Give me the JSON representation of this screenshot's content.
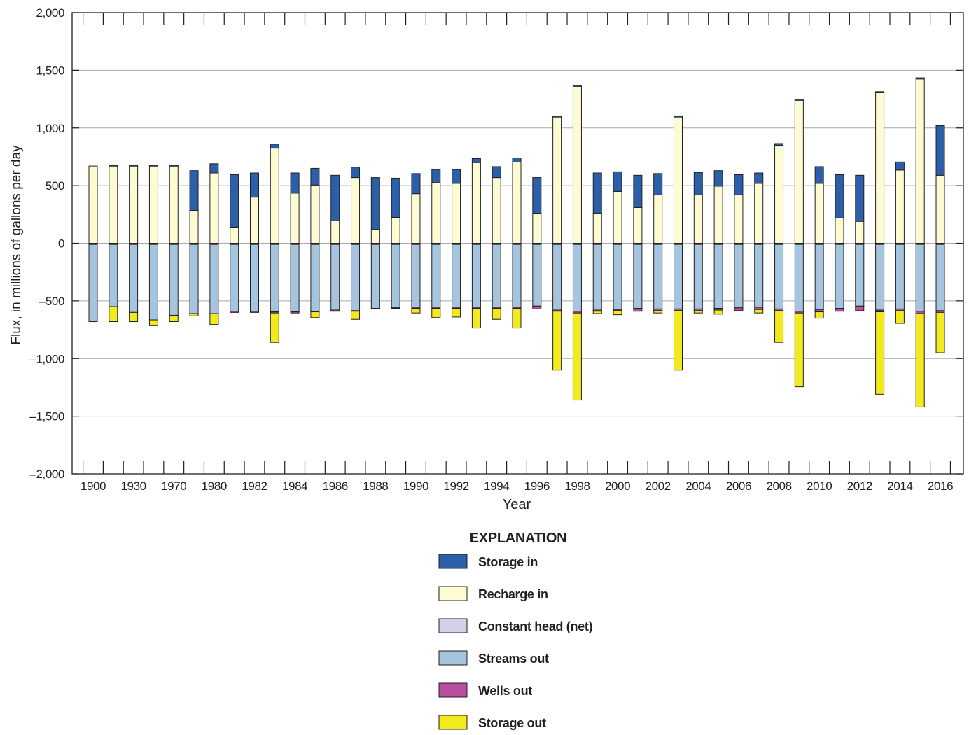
{
  "chart_data": {
    "type": "bar",
    "stacked": true,
    "xlabel": "Year",
    "ylabel": "Flux, in millions of gallons per day",
    "ylim": [
      -2000,
      2000
    ],
    "y_ticks": [
      2000,
      1500,
      1000,
      500,
      0,
      -500,
      -1000,
      -1500,
      -2000
    ],
    "y_tick_labels": [
      "2,000",
      "1,500",
      "1,000",
      "500",
      "0",
      "–500",
      "–1,000",
      "–1,500",
      "–2,000"
    ],
    "grid": true,
    "legend": {
      "title": "EXPLANATION",
      "placement": "bottom-center"
    },
    "categories": [
      "1900",
      "",
      "1930",
      "",
      "1970",
      "",
      "1980",
      "",
      "1982",
      "",
      "1984",
      "",
      "1986",
      "",
      "1988",
      "",
      "1990",
      "",
      "1992",
      "",
      "1994",
      "",
      "1996",
      "",
      "1998",
      "",
      "2000",
      "",
      "2002",
      "",
      "2004",
      "",
      "2006",
      "",
      "2008",
      "",
      "2010",
      "",
      "2012",
      "",
      "2014",
      "",
      "2016"
    ],
    "series": [
      {
        "name": "Storage in",
        "color": "#2b5fa9",
        "values": [
          0,
          8,
          8,
          8,
          8,
          345,
          80,
          455,
          210,
          35,
          175,
          145,
          395,
          90,
          450,
          340,
          175,
          115,
          120,
          35,
          95,
          35,
          310,
          10,
          10,
          350,
          170,
          280,
          185,
          10,
          195,
          135,
          175,
          90,
          15,
          10,
          145,
          375,
          400,
          10,
          70,
          10,
          430
        ]
      },
      {
        "name": "Recharge in",
        "color": "#fdfbd2",
        "values": [
          670,
          670,
          670,
          670,
          670,
          285,
          610,
          140,
          400,
          825,
          435,
          505,
          195,
          570,
          120,
          225,
          430,
          525,
          520,
          700,
          570,
          705,
          260,
          1095,
          1355,
          260,
          450,
          310,
          420,
          1095,
          420,
          495,
          420,
          520,
          850,
          1240,
          520,
          220,
          190,
          1305,
          635,
          1425,
          590
        ]
      },
      {
        "name": "Constant head (net)",
        "color": "#d3cfe8",
        "values": [
          -10,
          -10,
          -10,
          -10,
          -10,
          -10,
          -10,
          -10,
          -10,
          -10,
          -10,
          -10,
          -10,
          -10,
          -10,
          -10,
          -10,
          -10,
          -10,
          -10,
          -10,
          -10,
          -10,
          -10,
          -10,
          -10,
          -10,
          -10,
          -10,
          -10,
          -10,
          -10,
          -10,
          -10,
          -10,
          -10,
          -10,
          -10,
          -10,
          -10,
          -10,
          -10,
          -10
        ]
      },
      {
        "name": "Streams out",
        "color": "#a5c4de",
        "values": [
          -670,
          -540,
          -590,
          -655,
          -615,
          -600,
          -600,
          -580,
          -580,
          -585,
          -585,
          -580,
          -570,
          -575,
          -555,
          -550,
          -545,
          -545,
          -545,
          -545,
          -545,
          -545,
          -535,
          -570,
          -580,
          -570,
          -565,
          -555,
          -560,
          -560,
          -560,
          -555,
          -550,
          -545,
          -560,
          -580,
          -565,
          -555,
          -535,
          -570,
          -560,
          -580,
          -575
        ]
      },
      {
        "name": "Wells out",
        "color": "#b9509f",
        "values": [
          0,
          0,
          0,
          0,
          0,
          0,
          0,
          -10,
          -10,
          -10,
          -10,
          -5,
          -10,
          -5,
          -5,
          -5,
          -10,
          -10,
          -10,
          -10,
          -10,
          -10,
          -25,
          -10,
          -15,
          -10,
          -10,
          -25,
          -15,
          -15,
          -15,
          -15,
          -25,
          -20,
          -15,
          -15,
          -20,
          -25,
          -40,
          -15,
          -15,
          -20,
          -15
        ]
      },
      {
        "name": "Storage out",
        "color": "#f3ea1d",
        "values": [
          0,
          -130,
          -80,
          -50,
          -55,
          -20,
          -95,
          0,
          0,
          -255,
          0,
          -50,
          0,
          -70,
          0,
          0,
          -40,
          -80,
          -75,
          -170,
          -95,
          -170,
          0,
          -510,
          -755,
          -20,
          -35,
          0,
          -20,
          -515,
          -20,
          -35,
          0,
          -30,
          -275,
          -640,
          -55,
          0,
          0,
          -715,
          -110,
          -810,
          -350
        ]
      }
    ]
  }
}
